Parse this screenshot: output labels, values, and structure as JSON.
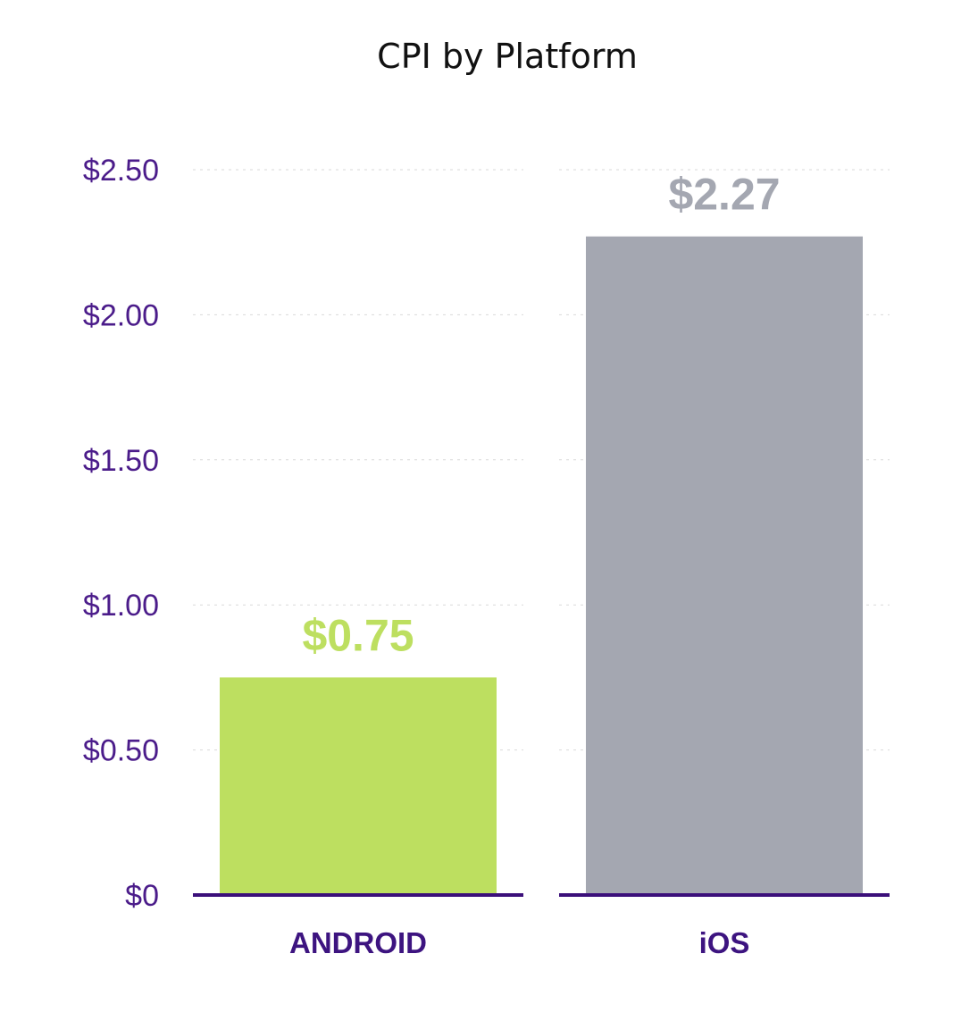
{
  "chart_data": {
    "type": "bar",
    "title": "CPI by Platform",
    "xlabel": "",
    "ylabel": "",
    "categories": [
      "ANDROID",
      "iOS"
    ],
    "values": [
      0.75,
      2.27
    ],
    "data_labels": [
      "$0.75",
      "$2.27"
    ],
    "ylim": [
      0,
      2.5
    ],
    "yticks": [
      0,
      0.5,
      1.0,
      1.5,
      2.0,
      2.5
    ],
    "ytick_labels": [
      "$0",
      "$0.50",
      "$1.00",
      "$1.50",
      "$2.00",
      "$2.50"
    ],
    "grid": true,
    "legend": "none",
    "colors": {
      "bars": [
        "#bddf60",
        "#a4a7b1"
      ],
      "data_labels": [
        "#bddf60",
        "#a4a7b1"
      ],
      "axis_text": "#4b1c8a",
      "baseline": "#3b0f7a",
      "title": "#111111"
    }
  }
}
